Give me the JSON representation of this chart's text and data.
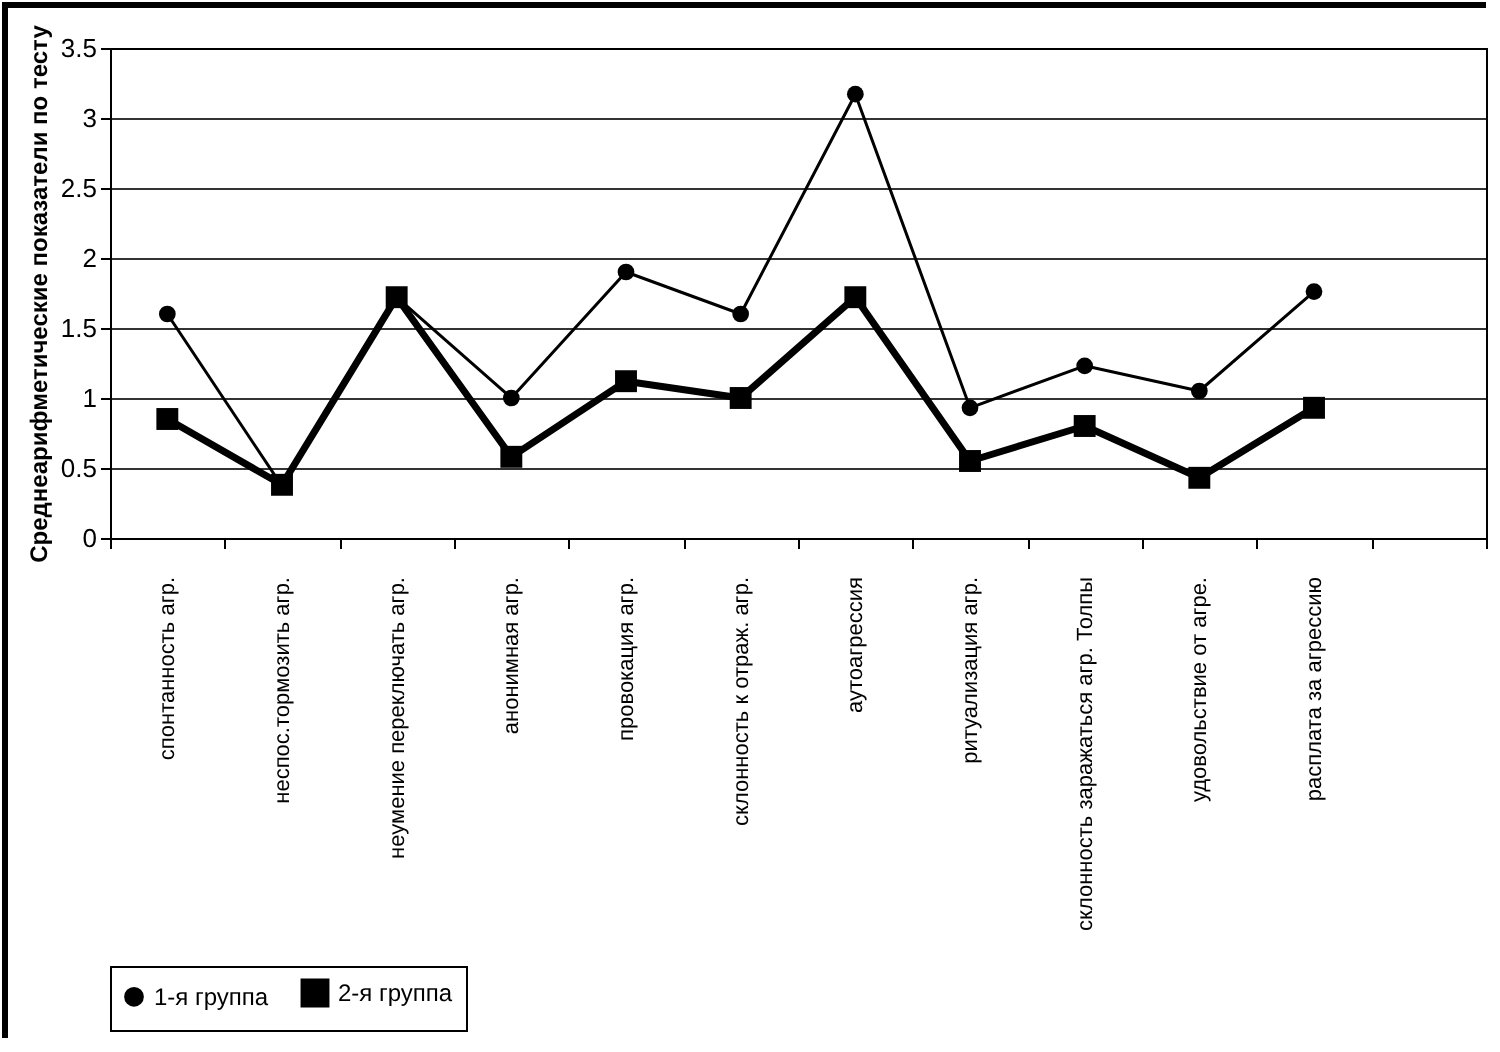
{
  "chart_data": {
    "type": "line",
    "ylabel": "Среднеарифметические показатели по тесту",
    "categories": [
      "спонтанность агр.",
      "неспос.тормозить агр.",
      "неумение переключать агр.",
      "анонимная агр.",
      "провокация агр.",
      "склонность к отраж. агр.",
      "аутоагрессия",
      "ритуализация агр.",
      "склонность заражаться агр. Толпы",
      "удовольствие от агре.",
      "расплата за агрессию",
      null
    ],
    "series": [
      {
        "name": "1-я группа",
        "color": "#000000",
        "marker": "circle",
        "values": [
          1.6,
          0.37,
          1.72,
          1.0,
          1.9,
          1.6,
          3.17,
          0.93,
          1.23,
          1.05,
          1.76,
          null
        ]
      },
      {
        "name": "2-я группа",
        "color": "#000000",
        "marker": "square",
        "values": [
          0.85,
          0.38,
          1.72,
          0.58,
          1.12,
          1.0,
          1.72,
          0.55,
          0.8,
          0.43,
          0.93,
          null
        ]
      }
    ],
    "ylim": [
      0,
      3.5
    ],
    "yticks": [
      0,
      0.5,
      1,
      1.5,
      2,
      2.5,
      3,
      3.5
    ],
    "grid": "y",
    "legend": "bottom"
  }
}
